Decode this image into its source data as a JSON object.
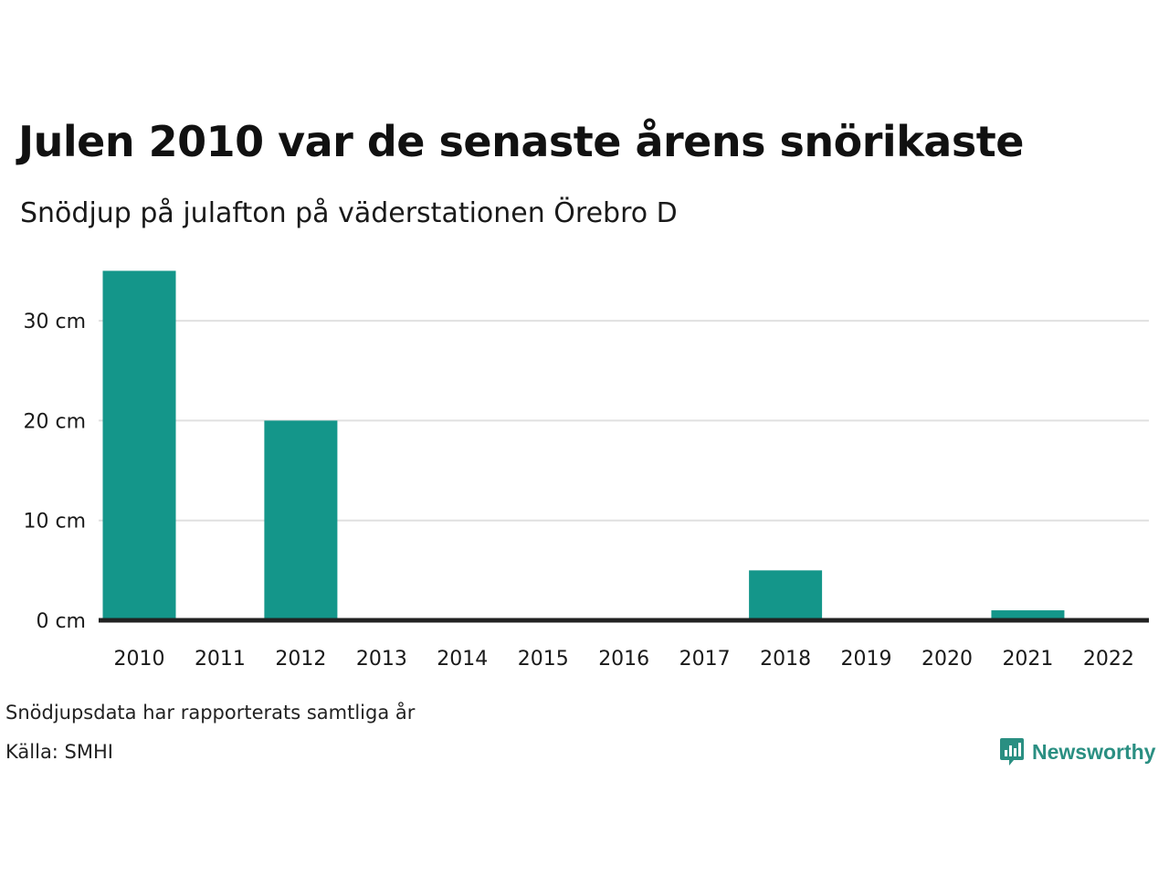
{
  "title": "Julen 2010 var de senaste årens snörikaste",
  "subtitle": "Snödjup på julafton på väderstationen Örebro D",
  "note": "Snödjupsdata har rapporterats samtliga år",
  "source": "Källa: SMHI",
  "brand": {
    "name": "Newsworthy",
    "icon": "bar-chart-logo-icon"
  },
  "colors": {
    "bar": "#14968a",
    "grid": "#e0e0e0",
    "baseline": "#222222",
    "brand": "#2a8f82"
  },
  "chart_data": {
    "type": "bar",
    "categories": [
      "2010",
      "2011",
      "2012",
      "2013",
      "2014",
      "2015",
      "2016",
      "2017",
      "2018",
      "2019",
      "2020",
      "2021",
      "2022"
    ],
    "values": [
      35,
      0,
      20,
      0,
      0,
      0,
      0,
      0,
      5,
      0,
      0,
      1,
      0
    ],
    "unit": "cm",
    "yticks": [
      0,
      10,
      20,
      30
    ],
    "ytick_labels": [
      "0 cm",
      "10 cm",
      "20 cm",
      "30 cm"
    ],
    "ylim": [
      0,
      35
    ],
    "grid": true,
    "legend": "none"
  }
}
